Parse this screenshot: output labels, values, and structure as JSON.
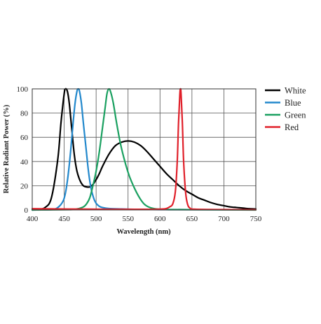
{
  "chart_data": {
    "type": "line",
    "title": "",
    "xlabel": "Wavelength (nm)",
    "ylabel": "Relative Radiant Power (%)",
    "xlim": [
      400,
      750
    ],
    "ylim": [
      0,
      100
    ],
    "x_ticks": [
      "400",
      "450",
      "500",
      "550",
      "600",
      "650",
      "700",
      "750"
    ],
    "y_ticks": [
      "0",
      "20",
      "40",
      "60",
      "80",
      "100"
    ],
    "grid": true,
    "legend_position": "outside-top-right",
    "series": [
      {
        "name": "White",
        "color": "#000000",
        "points": [
          [
            400,
            0
          ],
          [
            410,
            0.5
          ],
          [
            420,
            2
          ],
          [
            430,
            10
          ],
          [
            440,
            42
          ],
          [
            445,
            72
          ],
          [
            450,
            96
          ],
          [
            452,
            100
          ],
          [
            455,
            98
          ],
          [
            458,
            88
          ],
          [
            462,
            66
          ],
          [
            466,
            45
          ],
          [
            470,
            32
          ],
          [
            475,
            24
          ],
          [
            480,
            20
          ],
          [
            485,
            19
          ],
          [
            490,
            19
          ],
          [
            495,
            21
          ],
          [
            500,
            25
          ],
          [
            505,
            30
          ],
          [
            510,
            36
          ],
          [
            520,
            46
          ],
          [
            530,
            53
          ],
          [
            540,
            56
          ],
          [
            550,
            57
          ],
          [
            560,
            56
          ],
          [
            570,
            53
          ],
          [
            580,
            48
          ],
          [
            590,
            42
          ],
          [
            600,
            36
          ],
          [
            610,
            30
          ],
          [
            620,
            25
          ],
          [
            630,
            20
          ],
          [
            640,
            16
          ],
          [
            650,
            13
          ],
          [
            660,
            10
          ],
          [
            670,
            8
          ],
          [
            680,
            6
          ],
          [
            690,
            4.5
          ],
          [
            700,
            3.5
          ],
          [
            710,
            2.5
          ],
          [
            720,
            2
          ],
          [
            730,
            1.5
          ],
          [
            740,
            1
          ],
          [
            750,
            0.8
          ]
        ]
      },
      {
        "name": "Blue",
        "color": "#2288cc",
        "points": [
          [
            400,
            0
          ],
          [
            430,
            0.3
          ],
          [
            440,
            2
          ],
          [
            448,
            7
          ],
          [
            452,
            14
          ],
          [
            456,
            28
          ],
          [
            460,
            48
          ],
          [
            464,
            72
          ],
          [
            467,
            88
          ],
          [
            470,
            98
          ],
          [
            472,
            100
          ],
          [
            474,
            98
          ],
          [
            477,
            88
          ],
          [
            480,
            72
          ],
          [
            484,
            52
          ],
          [
            488,
            32
          ],
          [
            492,
            18
          ],
          [
            496,
            10
          ],
          [
            500,
            5.5
          ],
          [
            505,
            3
          ],
          [
            510,
            2
          ],
          [
            520,
            1.2
          ],
          [
            540,
            0.8
          ],
          [
            560,
            0.5
          ],
          [
            600,
            0.3
          ],
          [
            700,
            0.2
          ],
          [
            750,
            0.1
          ]
        ]
      },
      {
        "name": "Green",
        "color": "#1aa060",
        "points": [
          [
            400,
            0
          ],
          [
            460,
            0.3
          ],
          [
            470,
            0.8
          ],
          [
            480,
            2.5
          ],
          [
            485,
            5
          ],
          [
            490,
            10
          ],
          [
            495,
            20
          ],
          [
            500,
            32
          ],
          [
            505,
            48
          ],
          [
            510,
            68
          ],
          [
            514,
            84
          ],
          [
            517,
            96
          ],
          [
            520,
            100
          ],
          [
            523,
            97
          ],
          [
            527,
            88
          ],
          [
            532,
            72
          ],
          [
            538,
            55
          ],
          [
            545,
            40
          ],
          [
            552,
            28
          ],
          [
            560,
            18
          ],
          [
            568,
            10
          ],
          [
            575,
            5
          ],
          [
            582,
            2.5
          ],
          [
            590,
            1.2
          ],
          [
            600,
            0.6
          ],
          [
            620,
            0.3
          ],
          [
            700,
            0.1
          ],
          [
            750,
            0
          ]
        ]
      },
      {
        "name": "Red",
        "color": "#e0202a",
        "points": [
          [
            400,
            1
          ],
          [
            500,
            0.6
          ],
          [
            560,
            0.5
          ],
          [
            600,
            0.7
          ],
          [
            610,
            1.2
          ],
          [
            615,
            2.5
          ],
          [
            620,
            5
          ],
          [
            624,
            15
          ],
          [
            627,
            40
          ],
          [
            629,
            72
          ],
          [
            631,
            95
          ],
          [
            632,
            100
          ],
          [
            633,
            96
          ],
          [
            635,
            72
          ],
          [
            637,
            40
          ],
          [
            640,
            15
          ],
          [
            643,
            5
          ],
          [
            647,
            1.5
          ],
          [
            655,
            0.6
          ],
          [
            700,
            0.3
          ],
          [
            750,
            0.2
          ]
        ]
      }
    ]
  }
}
